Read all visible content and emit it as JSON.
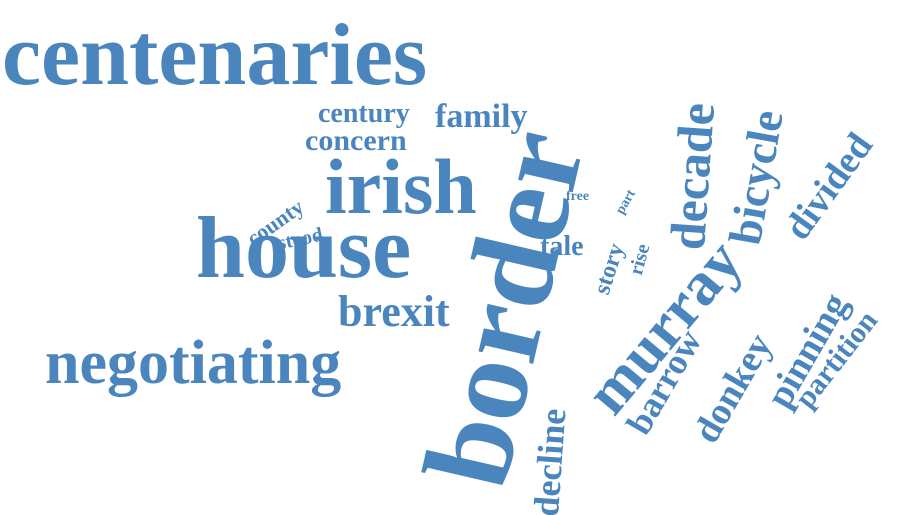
{
  "word_color": "#4a86bd",
  "words": [
    {
      "id": "centenaries",
      "text": "centenaries",
      "weight": 88,
      "orientation": "horizontal"
    },
    {
      "id": "border",
      "text": "border",
      "weight": 122,
      "orientation": "vertical"
    },
    {
      "id": "house",
      "text": "house",
      "weight": 88,
      "orientation": "horizontal"
    },
    {
      "id": "irish",
      "text": "irish",
      "weight": 78,
      "orientation": "horizontal"
    },
    {
      "id": "negotiating",
      "text": "negotiating",
      "weight": 62,
      "orientation": "horizontal"
    },
    {
      "id": "murray",
      "text": "murray",
      "weight": 62,
      "orientation": "diagonal"
    },
    {
      "id": "decade",
      "text": "decade",
      "weight": 50,
      "orientation": "vertical"
    },
    {
      "id": "bicycle",
      "text": "bicycle",
      "weight": 46,
      "orientation": "vertical"
    },
    {
      "id": "divided",
      "text": "divided",
      "weight": 38,
      "orientation": "diagonal"
    },
    {
      "id": "brexit",
      "text": "brexit",
      "weight": 44,
      "orientation": "horizontal"
    },
    {
      "id": "family",
      "text": "family",
      "weight": 34,
      "orientation": "horizontal"
    },
    {
      "id": "century",
      "text": "century",
      "weight": 28,
      "orientation": "horizontal"
    },
    {
      "id": "concern",
      "text": "concern",
      "weight": 30,
      "orientation": "horizontal"
    },
    {
      "id": "pinning",
      "text": "pinning",
      "weight": 38,
      "orientation": "diagonal"
    },
    {
      "id": "barrow",
      "text": "barrow",
      "weight": 36,
      "orientation": "diagonal"
    },
    {
      "id": "donkey",
      "text": "donkey",
      "weight": 38,
      "orientation": "diagonal"
    },
    {
      "id": "partition",
      "text": "partition",
      "weight": 30,
      "orientation": "diagonal"
    },
    {
      "id": "decline",
      "text": "decline",
      "weight": 36,
      "orientation": "vertical"
    },
    {
      "id": "county",
      "text": "county",
      "weight": 22,
      "orientation": "diagonal"
    },
    {
      "id": "stood",
      "text": "stood",
      "weight": 20,
      "orientation": "diagonal"
    },
    {
      "id": "tale",
      "text": "tale",
      "weight": 28,
      "orientation": "horizontal"
    },
    {
      "id": "story",
      "text": "story",
      "weight": 24,
      "orientation": "diagonal"
    },
    {
      "id": "rise",
      "text": "rise",
      "weight": 20,
      "orientation": "diagonal"
    },
    {
      "id": "free",
      "text": "free",
      "weight": 14,
      "orientation": "horizontal"
    },
    {
      "id": "part",
      "text": "part",
      "weight": 14,
      "orientation": "diagonal"
    }
  ]
}
